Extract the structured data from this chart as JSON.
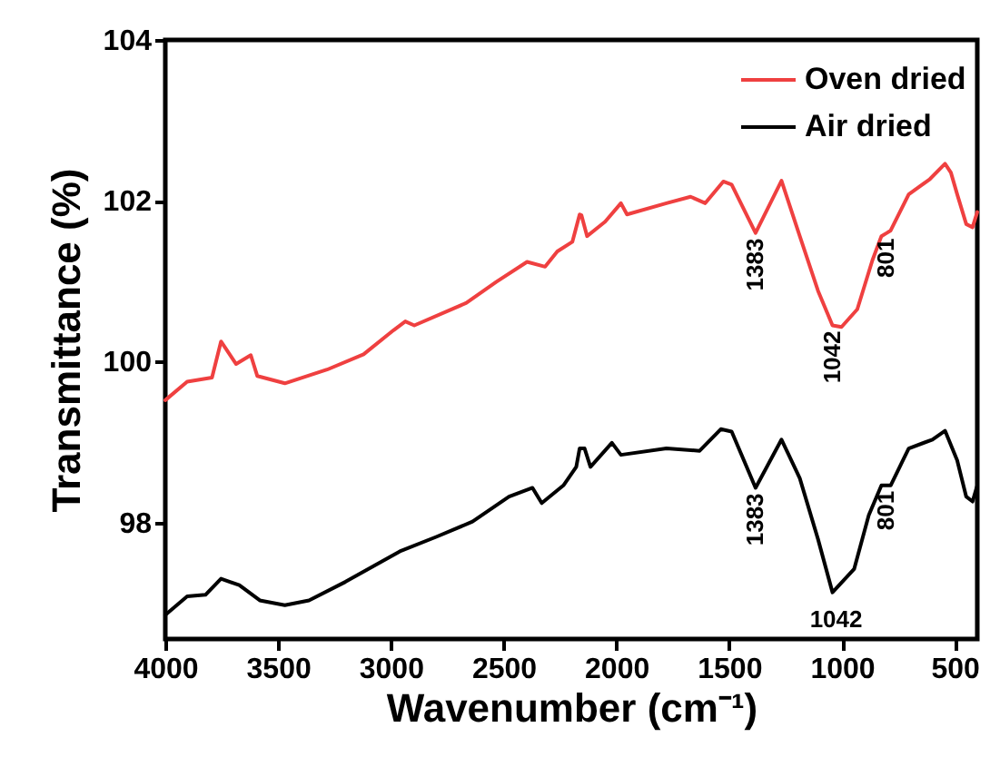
{
  "chart_data": {
    "type": "line",
    "xlabel": "Wavenumber (cm⁻¹)",
    "ylabel": "Transmittance (%)",
    "xlim": [
      4000,
      400
    ],
    "xticks": [
      {
        "value": 4000,
        "label": "4000"
      },
      {
        "value": 3500,
        "label": "3500"
      },
      {
        "value": 3000,
        "label": "3000"
      },
      {
        "value": 2500,
        "label": "2500"
      },
      {
        "value": 2000,
        "label": "2000"
      },
      {
        "value": 1500,
        "label": "1500"
      },
      {
        "value": 1000,
        "label": "1000"
      },
      500
    ],
    "ylim": [
      96.55,
      104
    ],
    "yticks": [
      98,
      100,
      102,
      104
    ],
    "legend": "top right",
    "series": [
      {
        "name": "Oven dried",
        "color": "#ef4040",
        "x": [
          4000,
          3903,
          3793,
          3753,
          3686,
          3621,
          3592,
          3470,
          3283,
          3121,
          2988,
          2936,
          2896,
          2665,
          2533,
          2396,
          2316,
          2262,
          2195,
          2163,
          2155,
          2130,
          2050,
          1980,
          1953,
          1778,
          1671,
          1606,
          1526,
          1489,
          1383,
          1268,
          1187,
          1106,
          1042,
          1002,
          932,
          865,
          825,
          801,
          784,
          704,
          610,
          543,
          517,
          489,
          449,
          421,
          400
        ],
        "values": [
          99.52,
          99.75,
          99.8,
          100.25,
          99.97,
          100.08,
          99.82,
          99.73,
          99.9,
          100.09,
          100.39,
          100.5,
          100.45,
          100.73,
          100.99,
          101.24,
          101.18,
          101.37,
          101.49,
          101.83,
          101.82,
          101.56,
          101.74,
          101.97,
          101.83,
          101.97,
          102.05,
          101.97,
          102.24,
          102.2,
          101.6,
          102.25,
          101.56,
          100.88,
          100.45,
          100.43,
          100.65,
          101.26,
          101.56,
          101.6,
          101.63,
          102.08,
          102.27,
          102.46,
          102.35,
          102.08,
          101.71,
          101.67,
          101.86
        ]
      },
      {
        "name": "Air dried",
        "color": "#000000",
        "x": [
          4000,
          3903,
          3822,
          3753,
          3672,
          3581,
          3470,
          3363,
          3202,
          2960,
          2799,
          2638,
          2476,
          2372,
          2331,
          2235,
          2178,
          2163,
          2141,
          2115,
          2020,
          1980,
          1778,
          1631,
          1537,
          1489,
          1383,
          1268,
          1187,
          1106,
          1042,
          946,
          881,
          825,
          801,
          784,
          704,
          599,
          543,
          489,
          449,
          421,
          400
        ],
        "values": [
          96.85,
          97.08,
          97.1,
          97.3,
          97.22,
          97.03,
          96.97,
          97.03,
          97.26,
          97.64,
          97.82,
          98.01,
          98.32,
          98.43,
          98.24,
          98.46,
          98.69,
          98.92,
          98.92,
          98.69,
          98.99,
          98.84,
          98.92,
          98.89,
          99.16,
          99.13,
          98.43,
          99.03,
          98.55,
          97.79,
          97.13,
          97.42,
          98.09,
          98.46,
          98.46,
          98.46,
          98.92,
          99.03,
          99.14,
          98.77,
          98.32,
          98.26,
          98.46
        ]
      }
    ],
    "annotations": [
      {
        "text": "1383",
        "x": 1383,
        "y": 101.6
      },
      {
        "text": "1042",
        "x": 1042,
        "y": 100.45
      },
      {
        "text": "801",
        "x": 801,
        "y": 101.6
      },
      {
        "text": "1383",
        "x": 1383,
        "y": 98.43
      },
      {
        "text": "801",
        "x": 801,
        "y": 98.46
      },
      {
        "text": "1042",
        "x": 1042,
        "y": 97.13
      }
    ]
  }
}
